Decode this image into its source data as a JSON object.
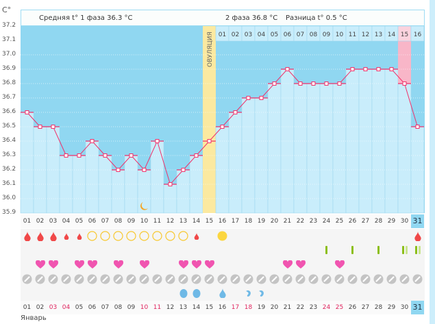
{
  "unit_label": "C°",
  "header": {
    "phase1": "Средняя t° 1 фаза  36.3 °C",
    "phase2": "2 фаза  36.8 °C",
    "diff": "Разница t° 0.5 °C"
  },
  "ovulation_label": "ОВУЛЯЦИЯ",
  "month": "Январь",
  "colors": {
    "bg_dark": "#90d7f1",
    "bar": "#c9edfb",
    "ovulation": "#fbe9a0",
    "highlight": "#f8b6c8",
    "line": "#f0306a",
    "today": "#90d7f1"
  },
  "chart_data": {
    "type": "line",
    "title": "",
    "ylabel": "C°",
    "ylim": [
      35.9,
      37.2
    ],
    "yticks": [
      "37.2",
      "37.1",
      "37.0",
      "36.9",
      "36.8",
      "36.7",
      "36.6",
      "36.5",
      "36.4",
      "36.3",
      "36.2",
      "36.1",
      "36.0",
      "35.9"
    ],
    "days": [
      "01",
      "02",
      "03",
      "04",
      "05",
      "06",
      "07",
      "08",
      "09",
      "10",
      "11",
      "12",
      "13",
      "14",
      "15",
      "16",
      "17",
      "18",
      "19",
      "20",
      "21",
      "22",
      "23",
      "24",
      "25",
      "26",
      "27",
      "28",
      "29",
      "30",
      "31"
    ],
    "values": [
      36.6,
      36.5,
      36.5,
      36.3,
      36.3,
      36.4,
      36.3,
      36.2,
      36.3,
      36.2,
      36.4,
      36.1,
      36.2,
      36.3,
      36.4,
      36.5,
      36.6,
      36.7,
      36.7,
      36.8,
      36.9,
      36.8,
      36.8,
      36.8,
      36.8,
      36.9,
      36.9,
      36.9,
      36.9,
      36.8,
      36.5
    ],
    "ovulation_day": 15,
    "phase2_days": [
      "01",
      "02",
      "03",
      "04",
      "05",
      "06",
      "07",
      "08",
      "09",
      "10",
      "11",
      "12",
      "13",
      "14",
      "15",
      "16"
    ],
    "highlight_phase2_day": 15,
    "today": 31,
    "weekend_days": [
      3,
      4,
      10,
      11,
      17,
      18,
      24,
      25
    ]
  },
  "rows": {
    "bleeding": {
      "1": "heavy",
      "2": "heavy",
      "3": "heavy",
      "4": "light",
      "5": "light",
      "14": "light",
      "31": "heavy"
    },
    "fertile_circle": [
      6,
      7,
      8,
      9,
      10,
      11,
      12,
      13
    ],
    "ovulation_sun": 16,
    "tests": {
      "24": [
        "dark"
      ],
      "26": [
        "dark"
      ],
      "28": [
        "dark"
      ],
      "30": [
        "dark",
        "light"
      ],
      "31": [
        "dark",
        "light"
      ]
    },
    "hearts": [
      2,
      3,
      5,
      6,
      8,
      10,
      13,
      14,
      15,
      21,
      22,
      25
    ],
    "pills": 31,
    "discharge": {
      "13": "egg",
      "14": "egg",
      "16": "drop",
      "18": "swirl",
      "19": "swirl"
    },
    "moon_day": 10
  }
}
